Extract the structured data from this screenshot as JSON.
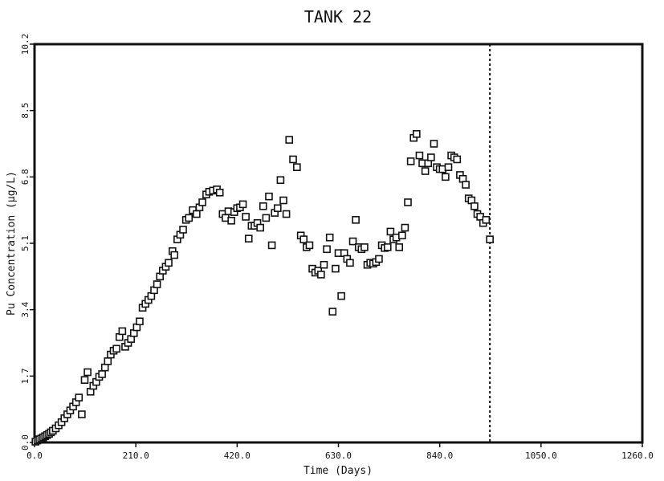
{
  "chart_data": {
    "type": "scatter",
    "title": "TANK 22",
    "xlabel": "Time (Days)",
    "ylabel": "Pu Concentration (µg/L)",
    "xlim": [
      0,
      1260
    ],
    "ylim": [
      0,
      10.2
    ],
    "xticks": [
      0,
      210,
      420,
      630,
      840,
      1050,
      1260
    ],
    "xtick_labels": [
      "0.0",
      "210.0",
      "420.0",
      "630.0",
      "840.0",
      "1050.0",
      "1260.0"
    ],
    "yticks": [
      0,
      1.7,
      3.4,
      5.1,
      6.8,
      8.5,
      10.2
    ],
    "ytick_labels": [
      "0.0",
      "1.7",
      "3.4",
      "5.1",
      "6.8",
      "8.5",
      "10.2"
    ],
    "grid": false,
    "marker": "open-square",
    "vline": {
      "x": 944,
      "style": "dotted"
    },
    "series": [
      {
        "points": [
          [
            2,
            0.02
          ],
          [
            6,
            0.05
          ],
          [
            10,
            0.08
          ],
          [
            14,
            0.1
          ],
          [
            18,
            0.13
          ],
          [
            22,
            0.16
          ],
          [
            26,
            0.19
          ],
          [
            30,
            0.22
          ],
          [
            34,
            0.26
          ],
          [
            38,
            0.3
          ],
          [
            44,
            0.36
          ],
          [
            50,
            0.44
          ],
          [
            56,
            0.52
          ],
          [
            62,
            0.62
          ],
          [
            68,
            0.72
          ],
          [
            74,
            0.82
          ],
          [
            80,
            0.92
          ],
          [
            86,
            1.03
          ],
          [
            92,
            1.15
          ],
          [
            98,
            0.72
          ],
          [
            104,
            1.6
          ],
          [
            110,
            1.8
          ],
          [
            116,
            1.3
          ],
          [
            122,
            1.45
          ],
          [
            128,
            1.55
          ],
          [
            134,
            1.68
          ],
          [
            140,
            1.75
          ],
          [
            146,
            1.92
          ],
          [
            152,
            2.08
          ],
          [
            158,
            2.25
          ],
          [
            164,
            2.35
          ],
          [
            170,
            2.4
          ],
          [
            176,
            2.7
          ],
          [
            182,
            2.85
          ],
          [
            188,
            2.45
          ],
          [
            194,
            2.55
          ],
          [
            200,
            2.65
          ],
          [
            206,
            2.8
          ],
          [
            212,
            2.95
          ],
          [
            218,
            3.1
          ],
          [
            224,
            3.45
          ],
          [
            230,
            3.55
          ],
          [
            236,
            3.65
          ],
          [
            242,
            3.75
          ],
          [
            248,
            3.9
          ],
          [
            254,
            4.05
          ],
          [
            260,
            4.25
          ],
          [
            266,
            4.4
          ],
          [
            272,
            4.5
          ],
          [
            278,
            4.6
          ],
          [
            286,
            4.9
          ],
          [
            290,
            4.8
          ],
          [
            296,
            5.2
          ],
          [
            302,
            5.32
          ],
          [
            308,
            5.45
          ],
          [
            314,
            5.7
          ],
          [
            320,
            5.75
          ],
          [
            328,
            5.95
          ],
          [
            336,
            5.85
          ],
          [
            342,
            6.02
          ],
          [
            348,
            6.15
          ],
          [
            356,
            6.35
          ],
          [
            362,
            6.42
          ],
          [
            370,
            6.45
          ],
          [
            378,
            6.48
          ],
          [
            384,
            6.4
          ],
          [
            390,
            5.85
          ],
          [
            396,
            5.75
          ],
          [
            402,
            5.92
          ],
          [
            408,
            5.68
          ],
          [
            414,
            5.9
          ],
          [
            420,
            6.0
          ],
          [
            426,
            6.02
          ],
          [
            432,
            6.1
          ],
          [
            438,
            5.78
          ],
          [
            444,
            5.22
          ],
          [
            450,
            5.55
          ],
          [
            456,
            5.55
          ],
          [
            462,
            5.62
          ],
          [
            468,
            5.5
          ],
          [
            474,
            6.05
          ],
          [
            480,
            5.75
          ],
          [
            486,
            6.3
          ],
          [
            492,
            5.05
          ],
          [
            498,
            5.88
          ],
          [
            504,
            6.0
          ],
          [
            510,
            6.72
          ],
          [
            516,
            6.2
          ],
          [
            522,
            5.85
          ],
          [
            528,
            7.75
          ],
          [
            536,
            7.25
          ],
          [
            544,
            7.05
          ],
          [
            552,
            5.3
          ],
          [
            558,
            5.2
          ],
          [
            564,
            5.0
          ],
          [
            570,
            5.05
          ],
          [
            576,
            4.45
          ],
          [
            582,
            4.35
          ],
          [
            588,
            4.4
          ],
          [
            594,
            4.3
          ],
          [
            600,
            4.55
          ],
          [
            606,
            4.95
          ],
          [
            612,
            5.25
          ],
          [
            618,
            3.35
          ],
          [
            624,
            4.45
          ],
          [
            630,
            4.85
          ],
          [
            636,
            3.75
          ],
          [
            642,
            4.85
          ],
          [
            648,
            4.7
          ],
          [
            654,
            4.6
          ],
          [
            660,
            5.15
          ],
          [
            666,
            5.7
          ],
          [
            672,
            5.0
          ],
          [
            678,
            4.95
          ],
          [
            684,
            5.0
          ],
          [
            690,
            4.55
          ],
          [
            696,
            4.6
          ],
          [
            702,
            4.58
          ],
          [
            708,
            4.62
          ],
          [
            714,
            4.7
          ],
          [
            720,
            5.05
          ],
          [
            726,
            4.98
          ],
          [
            732,
            5.0
          ],
          [
            738,
            5.4
          ],
          [
            744,
            5.2
          ],
          [
            750,
            5.25
          ],
          [
            756,
            5.0
          ],
          [
            762,
            5.3
          ],
          [
            768,
            5.5
          ],
          [
            774,
            6.15
          ],
          [
            780,
            7.2
          ],
          [
            786,
            7.8
          ],
          [
            792,
            7.9
          ],
          [
            798,
            7.35
          ],
          [
            804,
            7.15
          ],
          [
            810,
            6.95
          ],
          [
            816,
            7.15
          ],
          [
            822,
            7.3
          ],
          [
            828,
            7.65
          ],
          [
            834,
            7.05
          ],
          [
            840,
            7.0
          ],
          [
            846,
            7.0
          ],
          [
            852,
            6.8
          ],
          [
            858,
            7.05
          ],
          [
            864,
            7.35
          ],
          [
            870,
            7.3
          ],
          [
            876,
            7.25
          ],
          [
            882,
            6.85
          ],
          [
            888,
            6.75
          ],
          [
            894,
            6.6
          ],
          [
            900,
            6.25
          ],
          [
            906,
            6.2
          ],
          [
            912,
            6.05
          ],
          [
            918,
            5.85
          ],
          [
            924,
            5.78
          ],
          [
            930,
            5.62
          ],
          [
            936,
            5.7
          ],
          [
            944,
            5.2
          ]
        ]
      }
    ]
  }
}
